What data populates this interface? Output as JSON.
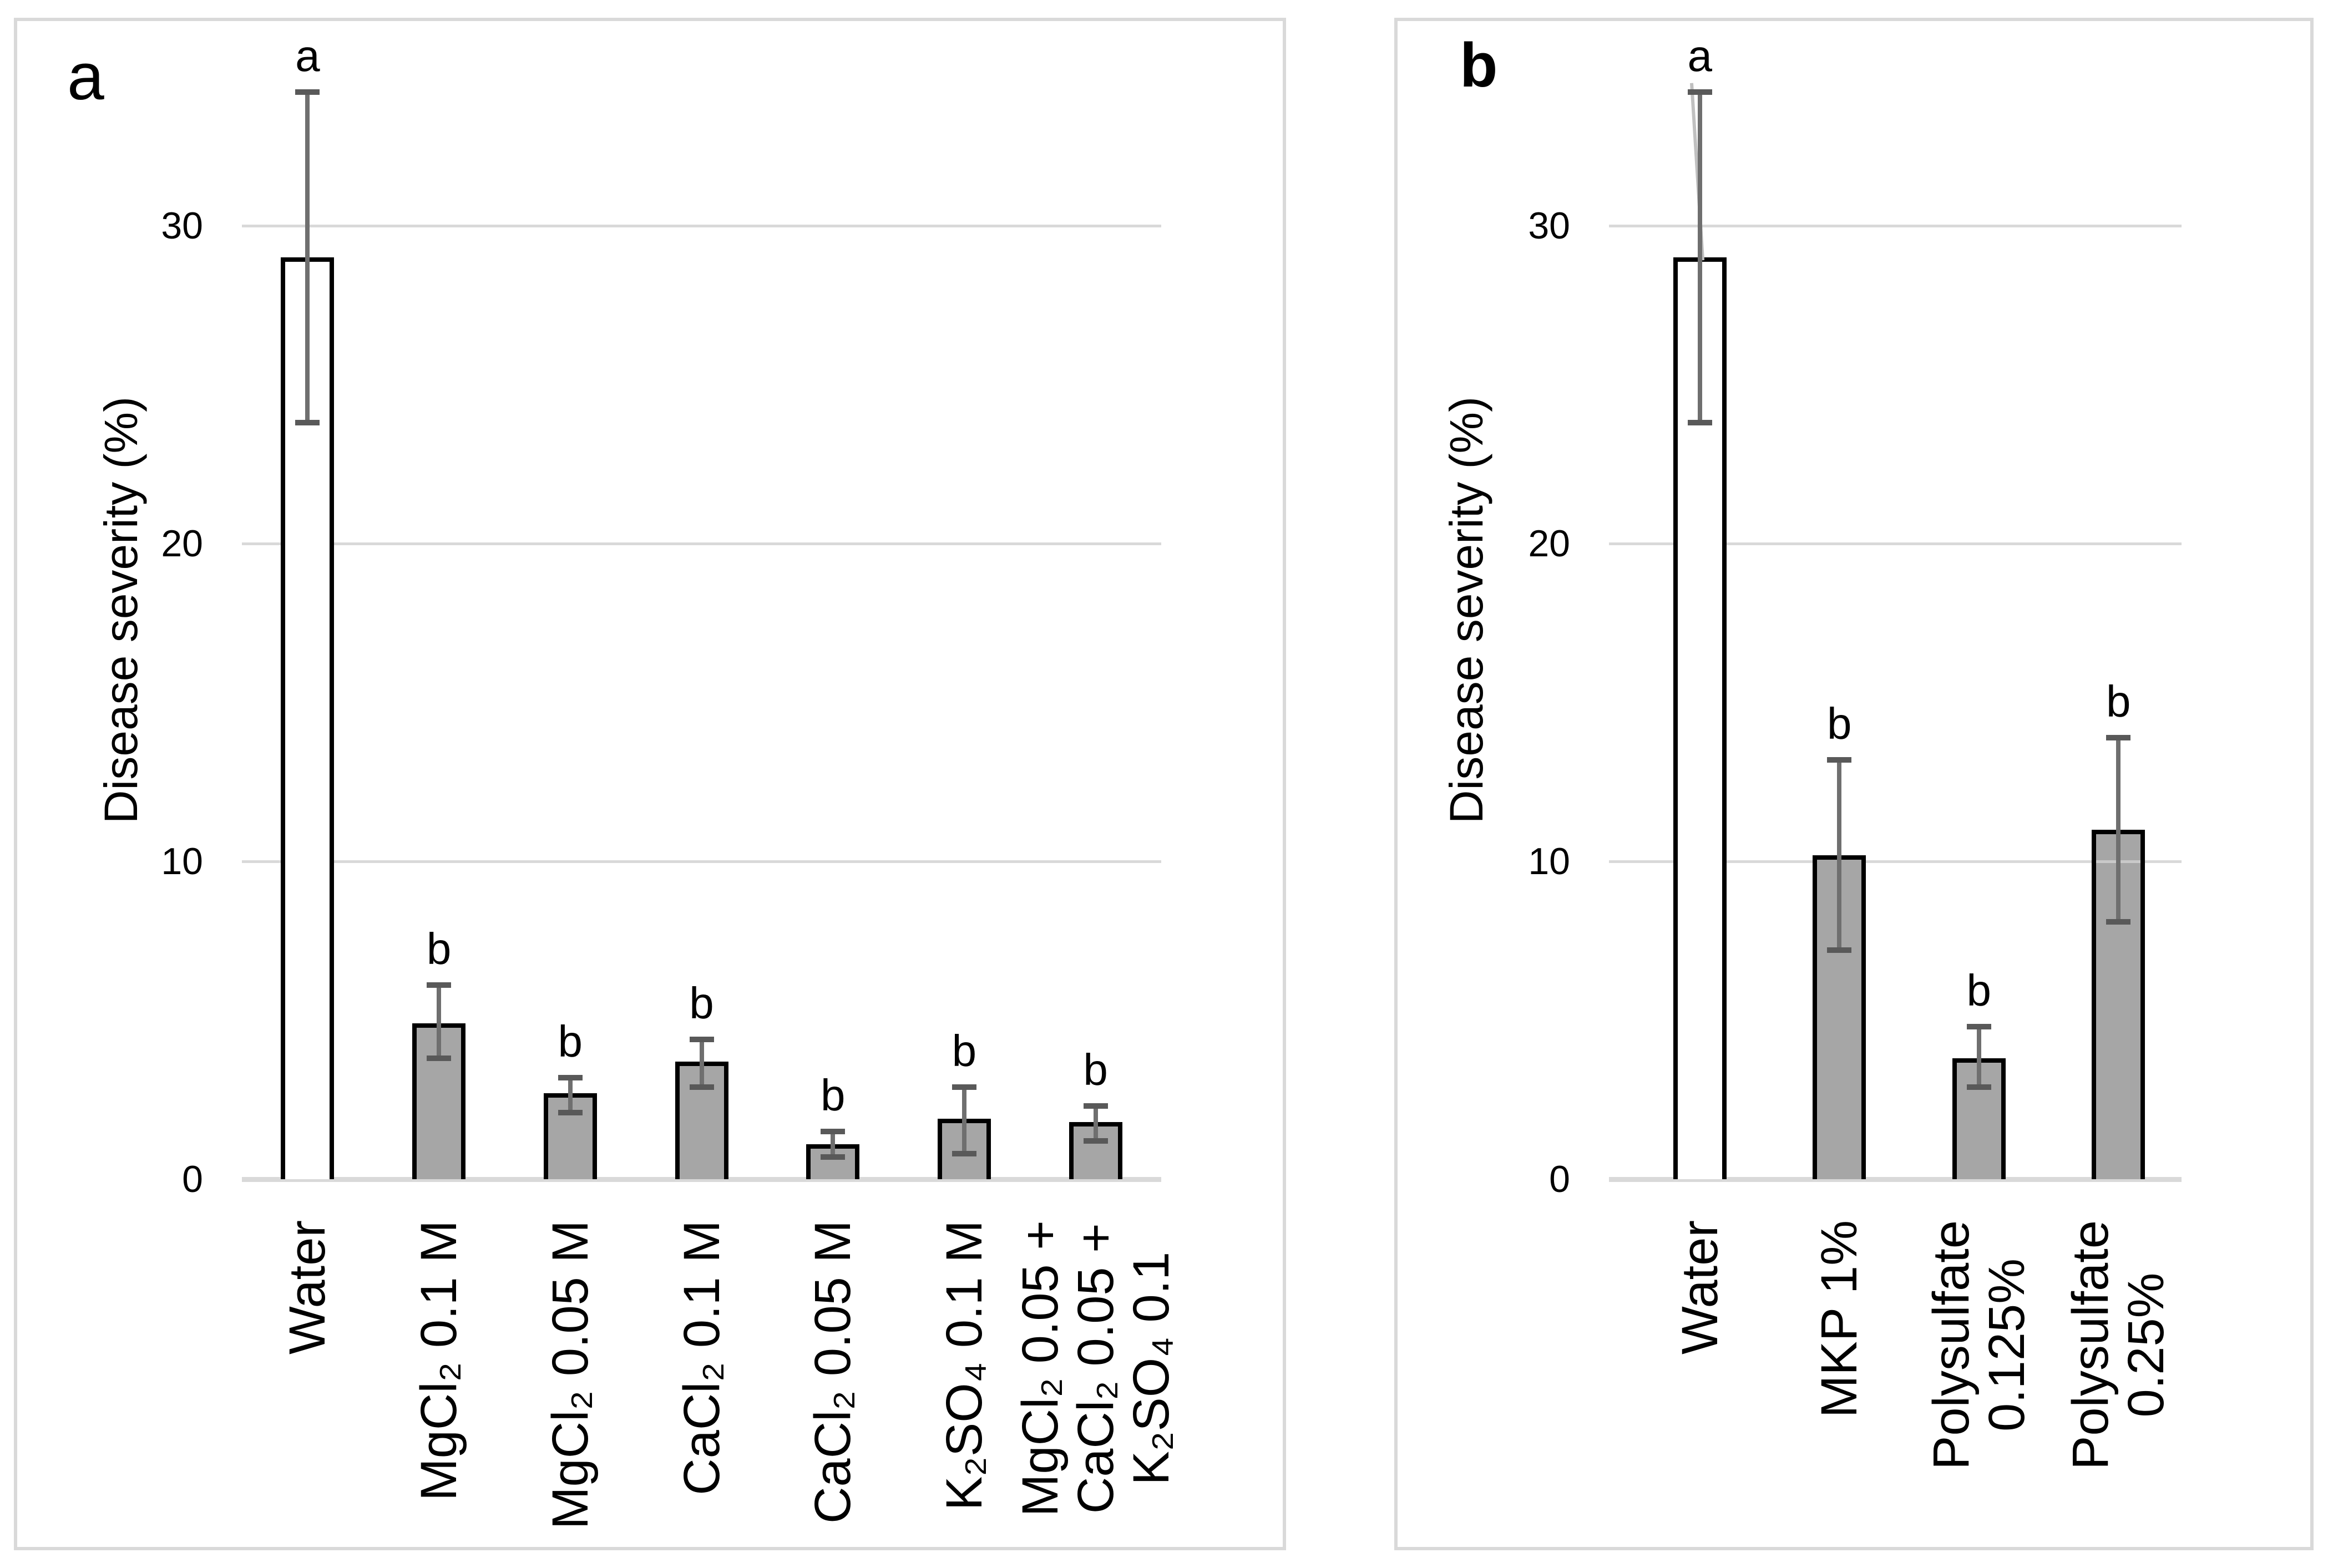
{
  "figure": {
    "background": "#ffffff",
    "colors": {
      "bar_gray": "#a6a6a6",
      "bar_white": "#ffffff",
      "bar_border": "#000000",
      "gridline": "#d9d9d9",
      "axis_line": "#d9d9d9",
      "error_bar_line": "#6f6f6f",
      "error_bar_cap": "#595959",
      "panel_border": "#d9d9d9",
      "text": "#000000",
      "artifact_line": "#c0c0c0"
    }
  },
  "chart_data": [
    {
      "type": "bar",
      "panel_label": "a",
      "panel_label_bold": false,
      "title": "a",
      "ylabel": "Disease severity (%)",
      "xlabel": "",
      "ylim": [
        0,
        36.5
      ],
      "yticks": [
        0,
        10,
        20,
        30
      ],
      "grid": "horizontal gridlines at y ticks",
      "legend": "none",
      "error_bars": "vertical with caps",
      "categories": [
        "Water",
        "MgCl₂ 0.1 M",
        "MgCl₂ 0.05 M",
        "CaCl₂ 0.1 M",
        "CaCl₂ 0.05 M",
        "K₂SO₄ 0.1 M",
        "MgCl₂ 0.05 + CaCl₂ 0.05 + K₂SO₄ 0.1"
      ],
      "category_label_lines": [
        [
          "Water"
        ],
        [
          "MgCl₂ 0.1 M"
        ],
        [
          "MgCl₂ 0.05 M"
        ],
        [
          "CaCl₂ 0.1 M"
        ],
        [
          "CaCl₂ 0.05 M"
        ],
        [
          "K₂SO₄ 0.1 M"
        ],
        [
          "MgCl₂ 0.05 +",
          "CaCl₂ 0.05 +",
          "K₂SO₄ 0.1"
        ]
      ],
      "values": [
        29.0,
        4.9,
        2.7,
        3.7,
        1.1,
        1.9,
        1.8
      ],
      "error_low": [
        23.8,
        3.8,
        2.1,
        2.9,
        0.7,
        0.8,
        1.2
      ],
      "error_high": [
        34.2,
        6.1,
        3.2,
        4.4,
        1.5,
        2.9,
        2.3
      ],
      "sig_letters": [
        "a",
        "b",
        "b",
        "b",
        "b",
        "b",
        "b"
      ],
      "bar_fills": [
        "#ffffff",
        "#a6a6a6",
        "#a6a6a6",
        "#a6a6a6",
        "#a6a6a6",
        "#a6a6a6",
        "#a6a6a6"
      ],
      "slanted_artifact_on_first_bar": false
    },
    {
      "type": "bar",
      "panel_label": "b",
      "panel_label_bold": true,
      "title": "b",
      "ylabel": "Disease severity (%)",
      "xlabel": "",
      "ylim": [
        0,
        36.5
      ],
      "yticks": [
        0,
        10,
        20,
        30
      ],
      "grid": "horizontal gridlines at y ticks",
      "legend": "none",
      "error_bars": "vertical with caps",
      "categories": [
        "Water",
        "MKP 1%",
        "Polysulfate 0.125%",
        "Polysulfate 0.25%"
      ],
      "category_label_lines": [
        [
          "Water"
        ],
        [
          "MKP 1%"
        ],
        [
          "Polysulfate",
          "0.125%"
        ],
        [
          "Polysulfate",
          "0.25%"
        ]
      ],
      "values": [
        29.0,
        10.2,
        3.8,
        11.0
      ],
      "error_low": [
        23.8,
        7.2,
        2.9,
        8.1
      ],
      "error_high": [
        34.2,
        13.2,
        4.8,
        13.9
      ],
      "sig_letters": [
        "a",
        "b",
        "b",
        "b"
      ],
      "bar_fills": [
        "#ffffff",
        "#a6a6a6",
        "#a6a6a6",
        "#a6a6a6"
      ],
      "slanted_artifact_on_first_bar": true
    }
  ]
}
